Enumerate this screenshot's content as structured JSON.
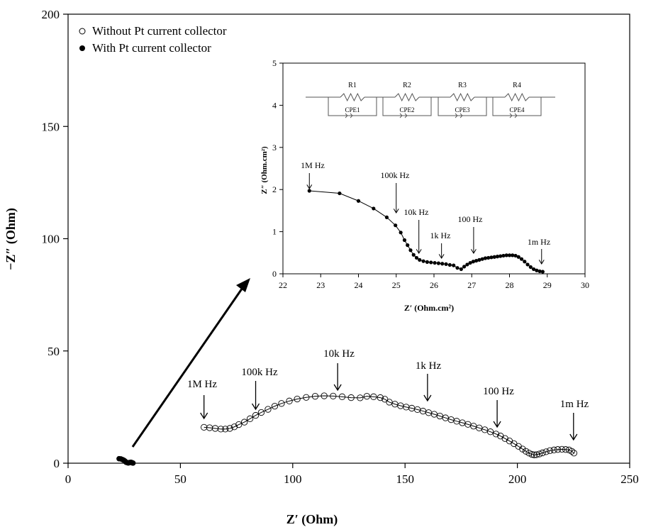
{
  "chart_data": [
    {
      "type": "scatter",
      "title": "",
      "xlabel": "Z′ (Ohm)",
      "ylabel": "−Z″ (Ohm)",
      "xlim": [
        0,
        250
      ],
      "ylim": [
        0,
        200
      ],
      "xticks": [
        0,
        50,
        100,
        150,
        200,
        250
      ],
      "yticks": [
        0,
        50,
        100,
        150,
        200
      ],
      "legend_position": "top-left",
      "grid": false,
      "series": [
        {
          "name": "Without Pt current collector",
          "marker": "open-circle",
          "line": true,
          "x": [
            60.5,
            63,
            65.5,
            68,
            70,
            72,
            74,
            76,
            78.5,
            81,
            83.5,
            86,
            89,
            92,
            95,
            98.5,
            102,
            106,
            110,
            114,
            118,
            122,
            126,
            130,
            133,
            136,
            139,
            141,
            143,
            145.5,
            148,
            150.5,
            153,
            155.5,
            158,
            160.5,
            163,
            165.5,
            168,
            170.5,
            173,
            175.5,
            178,
            180.5,
            183,
            185.5,
            188,
            190.5,
            192.5,
            194.5,
            196.5,
            198.5,
            200.5,
            202.3,
            203.8,
            205.2,
            206.5,
            207.5,
            208.5,
            209.8,
            211.2,
            212.8,
            214.5,
            216.3,
            218,
            219.8,
            221.5,
            223,
            224.2,
            225.2
          ],
          "y": [
            16,
            15.8,
            15.5,
            15.2,
            15.2,
            15.5,
            16.2,
            17.2,
            18.3,
            19.8,
            21.3,
            22.6,
            24,
            25.4,
            26.6,
            27.7,
            28.6,
            29.3,
            29.8,
            30,
            29.9,
            29.6,
            29.2,
            29.1,
            29.8,
            29.6,
            29.2,
            28.5,
            27.2,
            26.3,
            25.6,
            25,
            24.5,
            23.9,
            23.2,
            22.5,
            21.8,
            21,
            20.2,
            19.4,
            18.7,
            18,
            17.3,
            16.5,
            15.7,
            14.9,
            14,
            13,
            12.1,
            11,
            9.9,
            8.7,
            7.5,
            6.3,
            5.3,
            4.5,
            3.9,
            3.7,
            3.8,
            4.1,
            4.6,
            5.1,
            5.6,
            5.9,
            6.1,
            6.2,
            6.1,
            5.9,
            5.3,
            4.5
          ]
        },
        {
          "name": "With Pt current collector",
          "marker": "filled-circle",
          "line": false,
          "x": [
            22.7,
            23.5,
            24,
            24.5,
            25,
            25.4,
            25.8,
            26.2,
            26.6,
            26.8,
            27.2,
            27.6,
            28,
            28.3,
            28.6,
            28.9
          ],
          "y": [
            2,
            1.9,
            1.7,
            1.5,
            1.2,
            0.9,
            0.4,
            0.3,
            0.2,
            0.1,
            0.25,
            0.35,
            0.4,
            0.3,
            0.15,
            0.05
          ]
        }
      ],
      "annotations": [
        "1M Hz",
        "100k Hz",
        "10k Hz",
        "1k Hz",
        "100 Hz",
        "1m Hz"
      ]
    },
    {
      "type": "line",
      "title": "",
      "xlabel": "Z′ (Ohm.cm²)",
      "ylabel": "Z″ (Ohm.cm²)",
      "xlim": [
        22,
        30
      ],
      "ylim": [
        0,
        5
      ],
      "xticks": [
        22,
        23,
        24,
        25,
        26,
        27,
        28,
        29,
        30
      ],
      "yticks": [
        0,
        1,
        2,
        3,
        4,
        5
      ],
      "grid": false,
      "series": [
        {
          "name": "",
          "marker": "filled-circle",
          "x": [
            22.7,
            23.5,
            24,
            24.4,
            24.75,
            24.98,
            25.12,
            25.22,
            25.3,
            25.38,
            25.46,
            25.54,
            25.62,
            25.72,
            25.82,
            25.92,
            26.02,
            26.12,
            26.22,
            26.32,
            26.42,
            26.52,
            26.62,
            26.72,
            26.8,
            26.88,
            26.96,
            27.04,
            27.12,
            27.2,
            27.28,
            27.36,
            27.44,
            27.52,
            27.6,
            27.68,
            27.76,
            27.84,
            27.92,
            28,
            28.08,
            28.16,
            28.24,
            28.32,
            28.4,
            28.48,
            28.56,
            28.64,
            28.72,
            28.8,
            28.88
          ],
          "y": [
            1.97,
            1.91,
            1.73,
            1.55,
            1.34,
            1.15,
            0.98,
            0.8,
            0.68,
            0.56,
            0.45,
            0.38,
            0.33,
            0.3,
            0.28,
            0.27,
            0.26,
            0.25,
            0.24,
            0.23,
            0.21,
            0.2,
            0.14,
            0.11,
            0.17,
            0.22,
            0.26,
            0.29,
            0.31,
            0.33,
            0.35,
            0.37,
            0.38,
            0.39,
            0.4,
            0.41,
            0.42,
            0.43,
            0.44,
            0.44,
            0.44,
            0.43,
            0.4,
            0.35,
            0.29,
            0.22,
            0.16,
            0.11,
            0.08,
            0.06,
            0.05
          ]
        }
      ],
      "annotations": [
        "1M Hz",
        "100k Hz",
        "10k Hz",
        "1k Hz",
        "100 Hz",
        "1m Hz"
      ],
      "circuit": {
        "resistors": [
          "R1",
          "R2",
          "R3",
          "R4"
        ],
        "cpes": [
          "CPE1",
          "CPE2",
          "CPE3",
          "CPE4"
        ]
      }
    }
  ]
}
